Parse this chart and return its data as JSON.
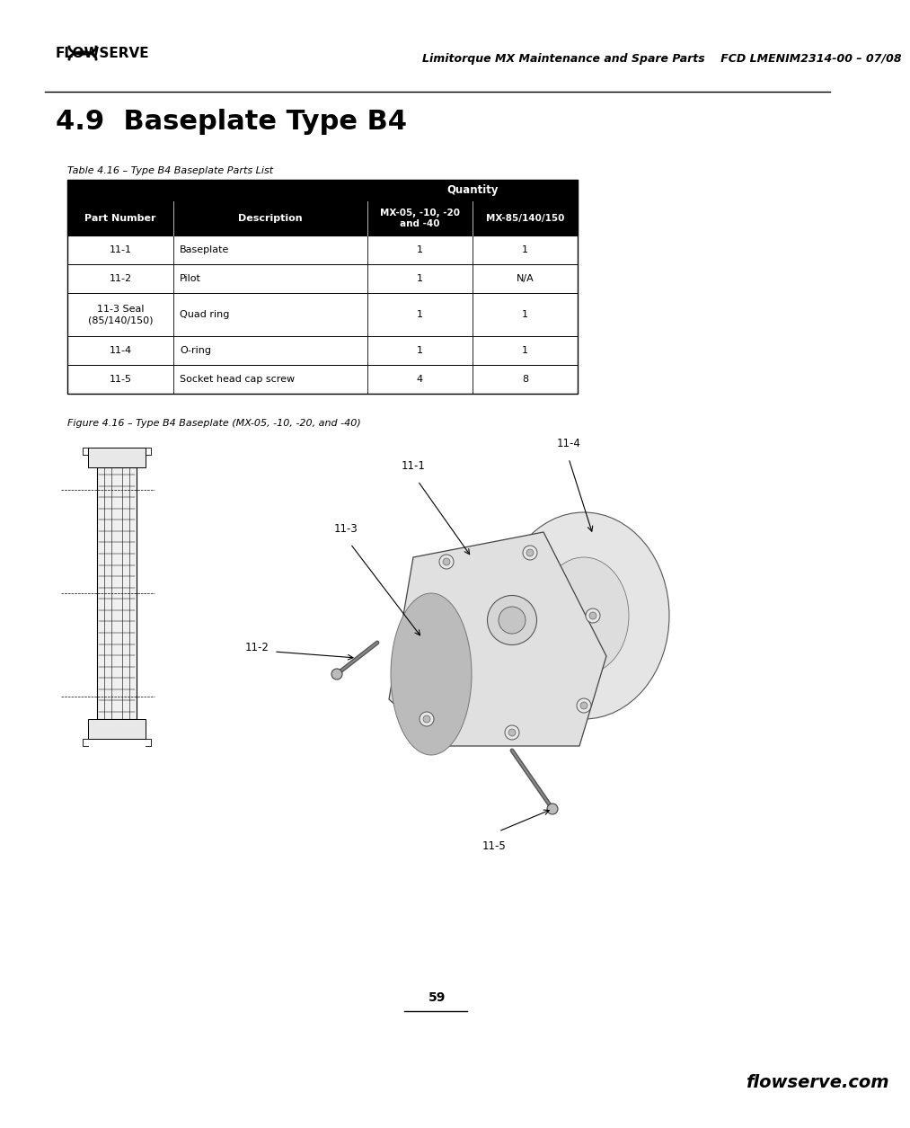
{
  "page_title": "4.9  Baseplate Type B4",
  "header_center": "Limitorque MX Maintenance and Spare Parts",
  "header_right": "FCD LMENIM2314-00 – 07/08",
  "table_caption": "Table 4.16 – Type B4 Baseplate Parts List",
  "figure_caption": "Figure 4.16 – Type B4 Baseplate (MX-05, -10, -20, and -40)",
  "table_rows": [
    [
      "11-1",
      "Baseplate",
      "1",
      "1"
    ],
    [
      "11-2",
      "Pilot",
      "1",
      "N/A"
    ],
    [
      "11-3 Seal\n(85/140/150)",
      "Quad ring",
      "1",
      "1"
    ],
    [
      "11-4",
      "O-ring",
      "1",
      "1"
    ],
    [
      "11-5",
      "Socket head cap screw",
      "4",
      "8"
    ]
  ],
  "page_number": "59",
  "footer_text": "flowserve.com",
  "bg": "#ffffff",
  "black": "#000000",
  "white": "#ffffff"
}
